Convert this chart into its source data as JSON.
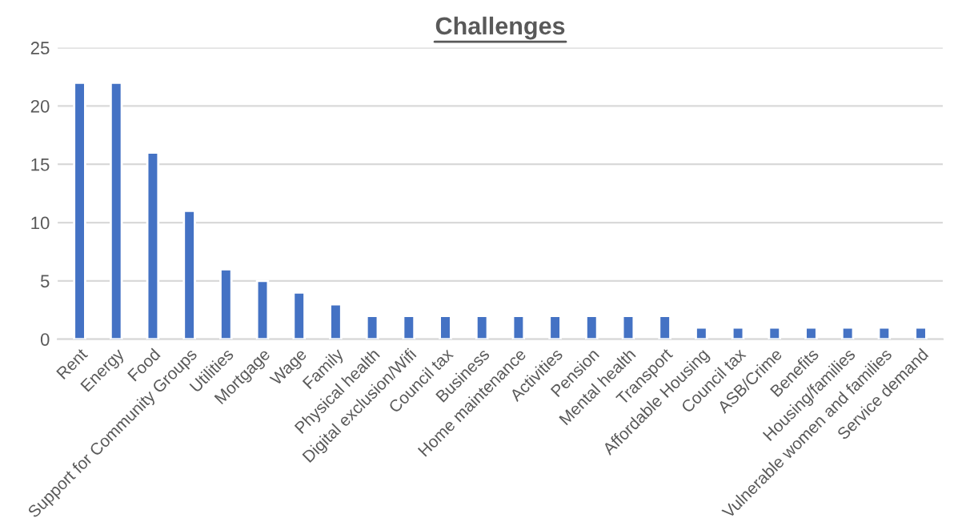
{
  "chart_data": {
    "type": "bar",
    "title": "Challenges",
    "categories": [
      "Rent",
      "Energy",
      "Food",
      "Support for Community Groups",
      "Utilities",
      "Mortgage",
      "Wage",
      "Family",
      "Physical health",
      "Digital exclusion/Wifi",
      "Council tax",
      "Business",
      "Home maintenance",
      "Activities",
      "Pension",
      "Mental health",
      "Transport",
      "Affordable Housing",
      "Council tax",
      "ASB/Crime",
      "Benefits",
      "Housing/families",
      "Vulnerable women and families",
      "Service demand"
    ],
    "values": [
      22,
      22,
      16,
      11,
      6,
      5,
      4,
      3,
      2,
      2,
      2,
      2,
      2,
      2,
      2,
      2,
      2,
      1,
      1,
      1,
      1,
      1,
      1,
      1
    ],
    "color": "#4472c4",
    "ylim": [
      0,
      25
    ],
    "yticks": [
      0,
      5,
      10,
      15,
      20,
      25
    ],
    "grid": "y",
    "legend": false
  }
}
